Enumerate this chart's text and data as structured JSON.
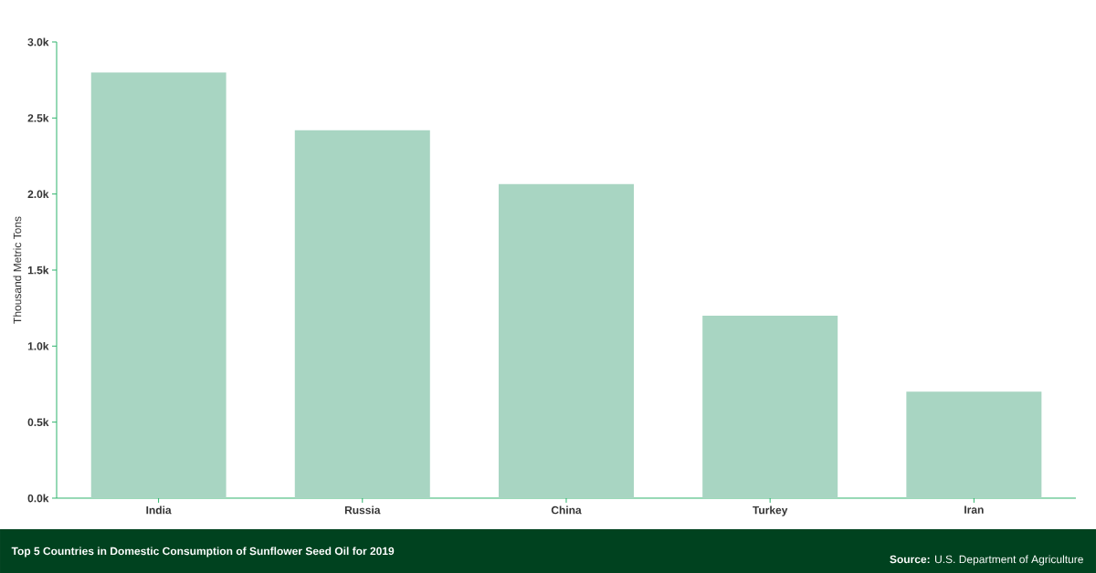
{
  "chart_data": {
    "type": "bar",
    "ylabel": "Thousand Metric Tons",
    "categories": [
      "India",
      "Russia",
      "China",
      "Turkey",
      "Iran"
    ],
    "values": [
      2800,
      2420,
      2065,
      1200,
      700
    ],
    "color": "#a8d5c2",
    "ylim": [
      0,
      3000
    ],
    "yticks": [
      {
        "value": 0,
        "label": "0.0k"
      },
      {
        "value": 500,
        "label": "0.5k"
      },
      {
        "value": 1000,
        "label": "1.0k"
      },
      {
        "value": 1500,
        "label": "1.5k"
      },
      {
        "value": 2000,
        "label": "2.0k"
      },
      {
        "value": 2500,
        "label": "2.5k"
      },
      {
        "value": 3000,
        "label": "3.0k"
      }
    ],
    "grid": false,
    "annotations": [
      "Top 5 Countries in Domestic Consumption of Sunflower Seed Oil for 2019",
      "**Source:**  U.S. Department of Agriculture"
    ]
  }
}
